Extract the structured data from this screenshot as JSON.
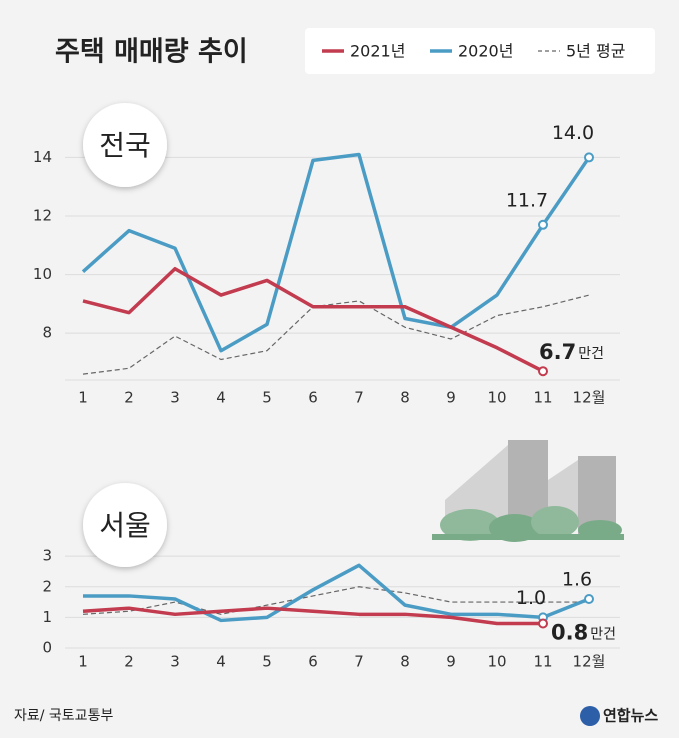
{
  "title": "주택 매매량 추이",
  "source": "자료/ 국토교통부",
  "logo": "연합뉴스",
  "chart_data": [
    {
      "type": "line",
      "title": "전국",
      "unit": "만건",
      "categories": [
        "1",
        "2",
        "3",
        "4",
        "5",
        "6",
        "7",
        "8",
        "9",
        "10",
        "11",
        "12월"
      ],
      "ylim": [
        6.4,
        14.8
      ],
      "yticks": [
        8,
        10,
        12,
        14
      ],
      "grid": true,
      "series": [
        {
          "name": "2021년",
          "color": "#c23b4e",
          "style": "solid",
          "values": [
            9.1,
            8.7,
            10.2,
            9.3,
            9.8,
            8.9,
            8.9,
            8.9,
            8.2,
            7.5,
            6.7,
            null
          ],
          "value_labels": [
            null,
            null,
            null,
            null,
            null,
            null,
            null,
            null,
            null,
            null,
            "6.7",
            null
          ]
        },
        {
          "name": "2020년",
          "color": "#4b9cc5",
          "style": "solid",
          "values": [
            10.1,
            11.5,
            10.9,
            7.4,
            8.3,
            13.9,
            14.1,
            8.5,
            8.2,
            9.3,
            11.7,
            14.0
          ],
          "value_labels": [
            null,
            null,
            null,
            null,
            null,
            null,
            null,
            null,
            null,
            null,
            "11.7",
            "14.0"
          ]
        },
        {
          "name": "5년 평균",
          "color": "#666666",
          "style": "dashed",
          "values": [
            6.6,
            6.8,
            7.9,
            7.1,
            7.4,
            8.9,
            9.1,
            8.2,
            7.8,
            8.6,
            8.9,
            9.3
          ]
        }
      ]
    },
    {
      "type": "line",
      "title": "서울",
      "unit": "만건",
      "categories": [
        "1",
        "2",
        "3",
        "4",
        "5",
        "6",
        "7",
        "8",
        "9",
        "10",
        "11",
        "12월"
      ],
      "ylim": [
        0,
        3.2
      ],
      "yticks": [
        0,
        1,
        2,
        3
      ],
      "grid": true,
      "series": [
        {
          "color": "#c23b4e",
          "style": "solid",
          "values": [
            1.2,
            1.3,
            1.1,
            1.2,
            1.3,
            1.2,
            1.1,
            1.1,
            1.0,
            0.8,
            0.8,
            null
          ],
          "value_labels": [
            null,
            null,
            null,
            null,
            null,
            null,
            null,
            null,
            null,
            null,
            "0.8",
            null
          ]
        },
        {
          "color": "#4b9cc5",
          "style": "solid",
          "values": [
            1.7,
            1.7,
            1.6,
            0.9,
            1.0,
            1.9,
            2.7,
            1.4,
            1.1,
            1.1,
            1.0,
            1.6
          ],
          "value_labels": [
            null,
            null,
            null,
            null,
            null,
            null,
            null,
            null,
            null,
            null,
            "1.0",
            "1.6"
          ]
        },
        {
          "color": "#666666",
          "style": "dashed",
          "values": [
            1.1,
            1.2,
            1.5,
            1.1,
            1.4,
            1.7,
            2.0,
            1.8,
            1.5,
            1.5,
            1.5,
            1.5
          ]
        }
      ]
    }
  ]
}
